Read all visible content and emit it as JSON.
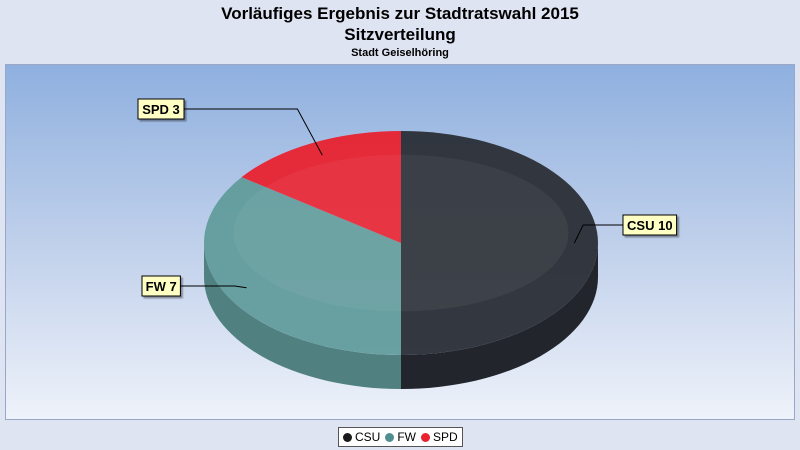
{
  "header": {
    "title": "Vorläufiges Ergebnis zur Stadtratswahl 2015",
    "subtitle": "Sitzverteilung",
    "location": "Stadt Geiselhöring"
  },
  "chart_data": {
    "type": "pie",
    "categories": [
      "CSU",
      "FW",
      "SPD"
    ],
    "values": [
      10,
      7,
      3
    ],
    "data_labels": [
      "CSU 10",
      "FW 7",
      "SPD 3"
    ],
    "colors": [
      "#2a2e36",
      "#629c9c",
      "#e8222f"
    ],
    "legend": "bottom-center",
    "three_d": true
  },
  "legend": {
    "items": [
      {
        "label": "CSU",
        "color": "#1a1a1a"
      },
      {
        "label": "FW",
        "color": "#4f8e8e"
      },
      {
        "label": "SPD",
        "color": "#e8222f"
      }
    ]
  }
}
